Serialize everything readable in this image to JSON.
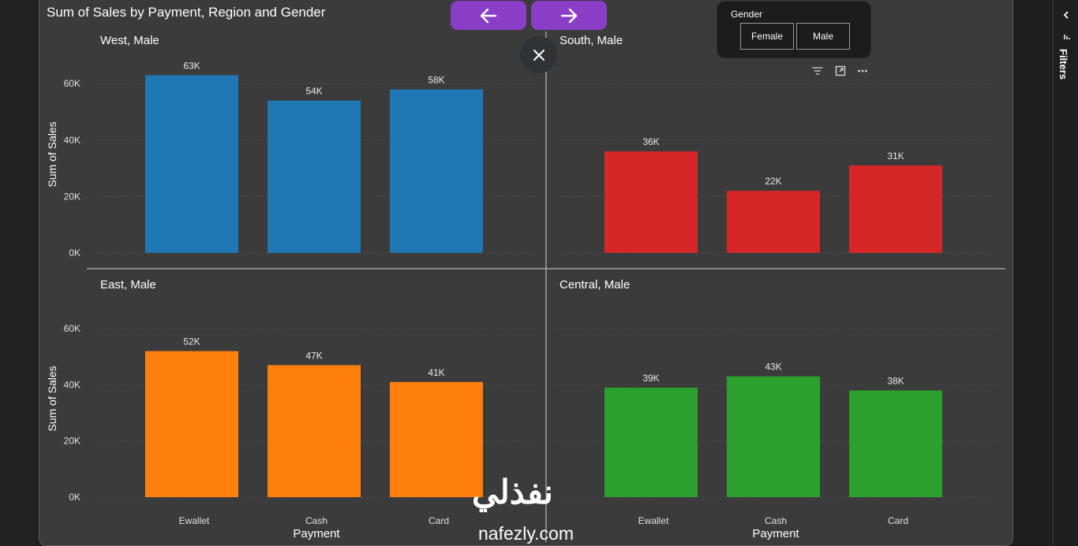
{
  "title": "Sum of Sales by Payment, Region and Gender",
  "slicer": {
    "title": "Gender",
    "options": [
      "Female",
      "Male"
    ],
    "selected": "Male"
  },
  "filters_label": "Filters",
  "watermark": {
    "arabic": "نفذلي",
    "latin": "nafezly.com"
  },
  "icons": {
    "prev": "arrow-left-icon",
    "next": "arrow-right-icon",
    "close": "close-icon",
    "filter": "filter-icon",
    "focus": "focus-mode-icon",
    "more": "more-options-icon",
    "collapse": "chevron-left-icon"
  },
  "colors": {
    "accent_nav": "#8a3ec8",
    "West": "#1f77b4",
    "South": "#d62728",
    "East": "#ff7f0e",
    "Central": "#2ca02c"
  },
  "chart_data": {
    "type": "bar",
    "xlabel": "Payment",
    "ylabel": "Sum of Sales",
    "categories": [
      "Ewallet",
      "Cash",
      "Card"
    ],
    "ylim": [
      0,
      66000
    ],
    "yticks": [
      "0K",
      "20K",
      "40K",
      "60K"
    ],
    "grid": true,
    "panels": [
      {
        "title": "West, Male",
        "values": [
          63000,
          54000,
          58000
        ],
        "labels": [
          "63K",
          "54K",
          "58K"
        ]
      },
      {
        "title": "South, Male",
        "values": [
          36000,
          22000,
          31000
        ],
        "labels": [
          "36K",
          "22K",
          "31K"
        ]
      },
      {
        "title": "East, Male",
        "values": [
          52000,
          47000,
          41000
        ],
        "labels": [
          "52K",
          "47K",
          "41K"
        ]
      },
      {
        "title": "Central, Male",
        "values": [
          39000,
          43000,
          38000
        ],
        "labels": [
          "39K",
          "43K",
          "38K"
        ]
      }
    ]
  }
}
